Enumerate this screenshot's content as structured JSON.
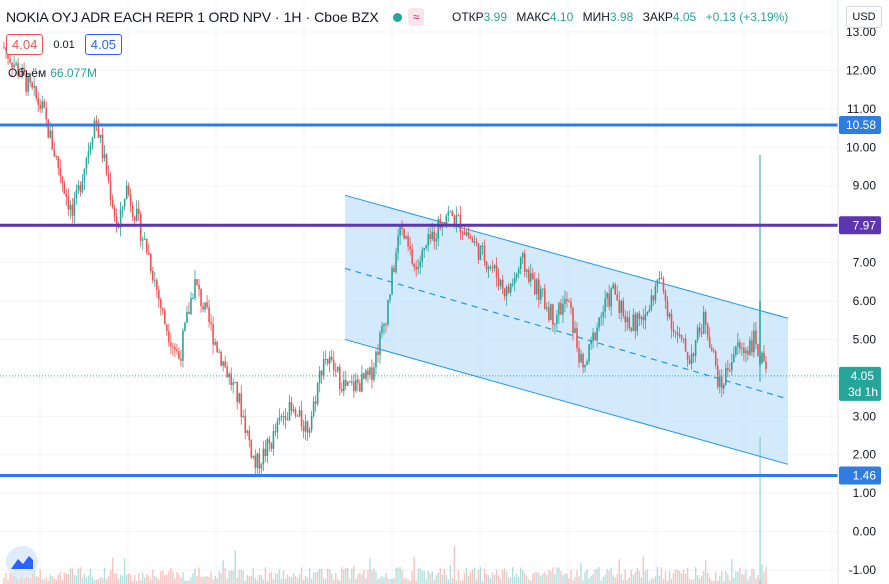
{
  "header": {
    "symbol": "NOKIA OYJ ADR EACH REPR 1 ORD NPV",
    "interval": "1H",
    "exchange": "Cboe BZX",
    "badge": "≈",
    "ohlc": {
      "open_label": "ОТКР",
      "open": "3.99",
      "high_label": "МАКС",
      "high": "4.10",
      "low_label": "МИН",
      "low": "3.98",
      "close_label": "ЗАКР",
      "close": "4.05",
      "change": "+0.13 (+3.19%)"
    }
  },
  "trade": {
    "sell": "4.04",
    "spread": "0.01",
    "buy": "4.05"
  },
  "volume": {
    "label": "Объём",
    "value": "66.077M"
  },
  "currency": "USD",
  "colors": {
    "up": "#26a69a",
    "down": "#ef5350",
    "hline_blue": "#2f7de1",
    "hline_purple": "#5e35b1",
    "channel_fill": "#bbdefb",
    "channel_line": "#2196f3"
  },
  "chart_data": {
    "type": "candlestick",
    "y_axis": {
      "min": -1.0,
      "max": 13.0,
      "ticks": [
        "13.00",
        "12.00",
        "11.00",
        "10.00",
        "9.00",
        "8.00",
        "7.00",
        "6.00",
        "5.00",
        "4.00",
        "3.00",
        "2.00",
        "1.00",
        "0.00",
        "-1.00"
      ]
    },
    "horizontal_lines": [
      {
        "value": 10.58,
        "label": "10.58",
        "color": "#2f7de1"
      },
      {
        "value": 7.97,
        "label": "7.97",
        "color": "#5e35b1"
      },
      {
        "value": 1.46,
        "label": "1.46",
        "color": "#2f7de1"
      }
    ],
    "last_price": {
      "value": 4.05,
      "label": "4.05",
      "countdown": "3d 1h"
    },
    "channel": {
      "upper": [
        8.75,
        5.55
      ],
      "lower": [
        5.0,
        1.75
      ],
      "mid": [
        6.85,
        3.45
      ]
    },
    "price_path": [
      [
        0,
        12.6
      ],
      [
        0.05,
        11.0
      ],
      [
        0.09,
        8.2
      ],
      [
        0.12,
        10.8
      ],
      [
        0.15,
        7.8
      ],
      [
        0.16,
        9.0
      ],
      [
        0.19,
        7.2
      ],
      [
        0.21,
        5.5
      ],
      [
        0.23,
        4.5
      ],
      [
        0.25,
        6.5
      ],
      [
        0.28,
        4.8
      ],
      [
        0.31,
        3.3
      ],
      [
        0.33,
        1.7
      ],
      [
        0.35,
        2.3
      ],
      [
        0.37,
        3.2
      ],
      [
        0.4,
        2.7
      ],
      [
        0.42,
        4.6
      ],
      [
        0.45,
        3.7
      ],
      [
        0.48,
        4.0
      ],
      [
        0.5,
        5.5
      ],
      [
        0.52,
        7.9
      ],
      [
        0.54,
        6.8
      ],
      [
        0.56,
        7.6
      ],
      [
        0.58,
        8.3
      ],
      [
        0.6,
        8.0
      ],
      [
        0.62,
        7.4
      ],
      [
        0.64,
        6.9
      ],
      [
        0.66,
        6.2
      ],
      [
        0.68,
        7.0
      ],
      [
        0.7,
        6.3
      ],
      [
        0.72,
        5.6
      ],
      [
        0.74,
        6.0
      ],
      [
        0.76,
        4.1
      ],
      [
        0.78,
        5.5
      ],
      [
        0.8,
        6.3
      ],
      [
        0.82,
        5.4
      ],
      [
        0.84,
        5.5
      ],
      [
        0.86,
        6.6
      ],
      [
        0.88,
        5.2
      ],
      [
        0.9,
        4.5
      ],
      [
        0.92,
        5.6
      ],
      [
        0.94,
        3.7
      ],
      [
        0.96,
        4.8
      ],
      [
        0.97,
        4.7
      ],
      [
        0.985,
        5.0
      ],
      [
        1.0,
        4.05
      ]
    ],
    "spike": {
      "high": 9.8,
      "low": 3.9
    }
  }
}
